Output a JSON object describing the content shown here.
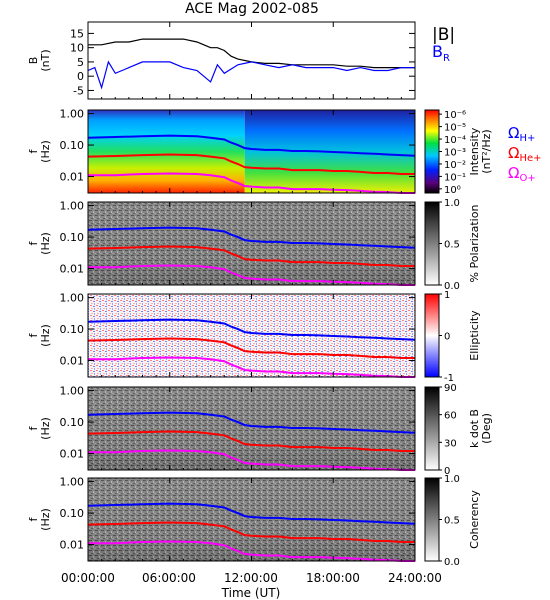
{
  "figure": {
    "title": "ACE Mag 2002-085",
    "time_axis": {
      "label": "Time (UT)",
      "tick_labels": [
        "00:00:00",
        "06:00:00",
        "12:00:00",
        "18:00:00",
        "24:00:00"
      ],
      "range_hours": [
        0,
        24
      ]
    }
  },
  "chart_data": [
    {
      "type": "line",
      "panel": "B",
      "ylabel": "B\n(nT)",
      "ylim": [
        -8,
        19
      ],
      "y_ticks": [
        -5,
        0,
        5,
        10,
        15
      ],
      "legend": [
        "|B|",
        "BR"
      ],
      "legend_placement": "right",
      "series": [
        {
          "name": "|B|",
          "color": "#000000",
          "x": [
            0,
            1,
            2,
            3,
            4,
            5,
            6,
            7,
            8,
            8.5,
            9,
            9.5,
            10,
            10.5,
            11,
            12,
            13,
            14,
            15,
            16,
            17,
            18,
            19,
            20,
            21,
            22,
            23,
            24
          ],
          "y": [
            11,
            11,
            12,
            12,
            13,
            13,
            13,
            13,
            12,
            11,
            10,
            10,
            9,
            7,
            6,
            5,
            4.5,
            4.5,
            4,
            4,
            4,
            4,
            3.5,
            3.5,
            3,
            3,
            3,
            3
          ]
        },
        {
          "name": "BR",
          "color": "#0000ff",
          "x": [
            0,
            0.5,
            1,
            1.5,
            2,
            2.5,
            3,
            4,
            5,
            6,
            7,
            8,
            9,
            9.5,
            10,
            11,
            12,
            13,
            14,
            15,
            16,
            17,
            18,
            19,
            20,
            21,
            22,
            23,
            24
          ],
          "y": [
            2,
            3,
            -4,
            5,
            1,
            2,
            3,
            5,
            5,
            5,
            3,
            2,
            -2,
            4,
            1,
            4,
            5,
            4,
            3,
            4,
            3,
            3,
            3,
            2,
            3,
            2,
            2,
            3,
            3
          ]
        }
      ]
    },
    {
      "type": "heatmap",
      "panel": "Intensity",
      "ylabel": "f\n(Hz)",
      "ylim": [
        0.003,
        1.3
      ],
      "yscale": "log",
      "y_ticks": [
        "0.01",
        "0.10",
        "1.00"
      ],
      "colorbar": {
        "label": "Intensity\n(nT²/Hz)",
        "tick_labels": [
          "10⁰",
          "10⁻¹",
          "10⁻²",
          "10⁻³",
          "10⁻⁴",
          "10⁻⁵",
          "10⁻⁶"
        ],
        "colormap": "rainbow"
      },
      "legend": [
        "ΩH+",
        "ΩHe+",
        "ΩO+"
      ]
    },
    {
      "type": "heatmap",
      "panel": "Polarization",
      "ylabel": "f\n(Hz)",
      "yscale": "log",
      "y_ticks": [
        "0.01",
        "0.10",
        "1.00"
      ],
      "colorbar": {
        "label": "% Polarization",
        "tick_labels": [
          "0.0",
          "0.5",
          "1.0"
        ],
        "colormap": "gray"
      }
    },
    {
      "type": "heatmap",
      "panel": "Ellipticity",
      "ylabel": "f\n(Hz)",
      "yscale": "log",
      "y_ticks": [
        "0.01",
        "0.10",
        "1.00"
      ],
      "colorbar": {
        "label": "Ellipticity",
        "tick_labels": [
          "-1",
          "0",
          "1"
        ],
        "colormap": "blue-white-red"
      }
    },
    {
      "type": "heatmap",
      "panel": "kdotB",
      "ylabel": "f\n(Hz)",
      "yscale": "log",
      "y_ticks": [
        "0.01",
        "0.10",
        "1.00"
      ],
      "colorbar": {
        "label": "k dot B\n(Deg)",
        "tick_labels": [
          "0",
          "30",
          "60",
          "90"
        ],
        "colormap": "gray"
      }
    },
    {
      "type": "heatmap",
      "panel": "Coherency",
      "ylabel": "f\n(Hz)",
      "yscale": "log",
      "y_ticks": [
        "0.01",
        "0.10",
        "1.00"
      ],
      "colorbar": {
        "label": "Coherency",
        "tick_labels": [
          "0.0",
          "0.5",
          "1.0"
        ],
        "colormap": "gray"
      }
    }
  ],
  "gyrofrequency_lines": [
    {
      "name": "ΩH+",
      "label": "Ω",
      "sub": "H+",
      "color": "#0000ff",
      "x": [
        0,
        2,
        4,
        6,
        8,
        9,
        10,
        10.5,
        11,
        11.5,
        12,
        13,
        14,
        15,
        16,
        17,
        18,
        19,
        20,
        21,
        22,
        23,
        24
      ],
      "y": [
        0.17,
        0.18,
        0.19,
        0.2,
        0.19,
        0.17,
        0.15,
        0.12,
        0.1,
        0.08,
        0.075,
        0.07,
        0.07,
        0.065,
        0.065,
        0.063,
        0.06,
        0.058,
        0.055,
        0.053,
        0.05,
        0.048,
        0.046
      ]
    },
    {
      "name": "ΩHe+",
      "label": "Ω",
      "sub": "He+",
      "color": "#ff0000",
      "x": [
        0,
        2,
        4,
        6,
        8,
        9,
        10,
        10.5,
        11,
        11.5,
        12,
        13,
        14,
        15,
        16,
        17,
        18,
        19,
        20,
        21,
        22,
        23,
        24
      ],
      "y": [
        0.043,
        0.045,
        0.048,
        0.05,
        0.048,
        0.043,
        0.038,
        0.03,
        0.025,
        0.02,
        0.019,
        0.018,
        0.018,
        0.016,
        0.016,
        0.016,
        0.015,
        0.015,
        0.014,
        0.013,
        0.013,
        0.012,
        0.012
      ]
    },
    {
      "name": "ΩO+",
      "label": "Ω",
      "sub": "O+",
      "color": "#ff00ff",
      "x": [
        0,
        2,
        4,
        6,
        8,
        9,
        10,
        10.5,
        11,
        11.5,
        12,
        13,
        14,
        15,
        16,
        17,
        18,
        19,
        20,
        21,
        22,
        23,
        24
      ],
      "y": [
        0.011,
        0.011,
        0.012,
        0.0125,
        0.012,
        0.011,
        0.0095,
        0.0075,
        0.0062,
        0.005,
        0.0048,
        0.0045,
        0.0045,
        0.004,
        0.004,
        0.004,
        0.0038,
        0.0037,
        0.0035,
        0.0033,
        0.0032,
        0.003,
        0.003
      ]
    }
  ],
  "colors": {
    "axis": "#000000",
    "background": "#ffffff"
  }
}
